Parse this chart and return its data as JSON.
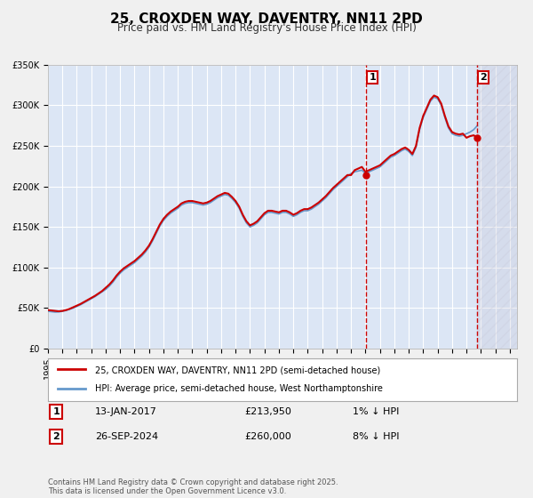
{
  "title": "25, CROXDEN WAY, DAVENTRY, NN11 2PD",
  "subtitle": "Price paid vs. HM Land Registry's House Price Index (HPI)",
  "xlabel": "",
  "ylabel": "",
  "ylim": [
    0,
    350000
  ],
  "yticks": [
    0,
    50000,
    100000,
    150000,
    200000,
    250000,
    300000,
    350000
  ],
  "ytick_labels": [
    "£0",
    "£50K",
    "£100K",
    "£150K",
    "£200K",
    "£250K",
    "£300K",
    "£350K"
  ],
  "xlim_start": 1995.0,
  "xlim_end": 2027.5,
  "bg_color": "#e8eef8",
  "plot_bg_color": "#dce6f5",
  "grid_color": "#ffffff",
  "red_line_color": "#cc0000",
  "blue_line_color": "#6699cc",
  "hatch_color": "#ccccdd",
  "purchase1_year": 2017.04,
  "purchase1_price": 213950,
  "purchase2_year": 2024.73,
  "purchase2_price": 260000,
  "legend1": "25, CROXDEN WAY, DAVENTRY, NN11 2PD (semi-detached house)",
  "legend2": "HPI: Average price, semi-detached house, West Northamptonshire",
  "ann1_label": "1",
  "ann1_date": "13-JAN-2017",
  "ann1_price": "£213,950",
  "ann1_rel": "1% ↓ HPI",
  "ann2_label": "2",
  "ann2_date": "26-SEP-2024",
  "ann2_price": "£260,000",
  "ann2_rel": "8% ↓ HPI",
  "footer": "Contains HM Land Registry data © Crown copyright and database right 2025.\nThis data is licensed under the Open Government Licence v3.0.",
  "hpi_years": [
    1995.0,
    1995.25,
    1995.5,
    1995.75,
    1996.0,
    1996.25,
    1996.5,
    1996.75,
    1997.0,
    1997.25,
    1997.5,
    1997.75,
    1998.0,
    1998.25,
    1998.5,
    1998.75,
    1999.0,
    1999.25,
    1999.5,
    1999.75,
    2000.0,
    2000.25,
    2000.5,
    2000.75,
    2001.0,
    2001.25,
    2001.5,
    2001.75,
    2002.0,
    2002.25,
    2002.5,
    2002.75,
    2003.0,
    2003.25,
    2003.5,
    2003.75,
    2004.0,
    2004.25,
    2004.5,
    2004.75,
    2005.0,
    2005.25,
    2005.5,
    2005.75,
    2006.0,
    2006.25,
    2006.5,
    2006.75,
    2007.0,
    2007.25,
    2007.5,
    2007.75,
    2008.0,
    2008.25,
    2008.5,
    2008.75,
    2009.0,
    2009.25,
    2009.5,
    2009.75,
    2010.0,
    2010.25,
    2010.5,
    2010.75,
    2011.0,
    2011.25,
    2011.5,
    2011.75,
    2012.0,
    2012.25,
    2012.5,
    2012.75,
    2013.0,
    2013.25,
    2013.5,
    2013.75,
    2014.0,
    2014.25,
    2014.5,
    2014.75,
    2015.0,
    2015.25,
    2015.5,
    2015.75,
    2016.0,
    2016.25,
    2016.5,
    2016.75,
    2017.0,
    2017.25,
    2017.5,
    2017.75,
    2018.0,
    2018.25,
    2018.5,
    2018.75,
    2019.0,
    2019.25,
    2019.5,
    2019.75,
    2020.0,
    2020.25,
    2020.5,
    2020.75,
    2021.0,
    2021.25,
    2021.5,
    2021.75,
    2022.0,
    2022.25,
    2022.5,
    2022.75,
    2023.0,
    2023.25,
    2023.5,
    2023.75,
    2024.0,
    2024.25,
    2024.5,
    2024.75
  ],
  "hpi_values": [
    46000,
    45500,
    45000,
    45200,
    46000,
    47000,
    48500,
    50000,
    52000,
    54000,
    56500,
    59000,
    61500,
    64000,
    67000,
    70000,
    73000,
    77000,
    82000,
    88000,
    93000,
    97000,
    100000,
    103000,
    106000,
    110000,
    114000,
    119000,
    125000,
    133000,
    142000,
    151000,
    158000,
    163000,
    167000,
    170000,
    173000,
    177000,
    179000,
    180000,
    180000,
    179000,
    178000,
    177000,
    178000,
    180000,
    183000,
    186000,
    188000,
    190000,
    189000,
    185000,
    180000,
    173000,
    163000,
    155000,
    150000,
    152000,
    155000,
    160000,
    165000,
    168000,
    168000,
    167000,
    166000,
    168000,
    168000,
    166000,
    163000,
    165000,
    168000,
    170000,
    170000,
    172000,
    175000,
    178000,
    182000,
    186000,
    191000,
    196000,
    200000,
    204000,
    208000,
    212000,
    216000,
    218000,
    219000,
    220000,
    216000,
    218000,
    220000,
    222000,
    224000,
    228000,
    232000,
    236000,
    238000,
    241000,
    244000,
    246000,
    243000,
    238000,
    248000,
    270000,
    285000,
    295000,
    305000,
    310000,
    308000,
    300000,
    285000,
    272000,
    265000,
    263000,
    262000,
    263000,
    265000,
    267000,
    270000,
    275000
  ],
  "prop_years": [
    1995.0,
    1995.25,
    1995.5,
    1995.75,
    1996.0,
    1996.25,
    1996.5,
    1996.75,
    1997.0,
    1997.25,
    1997.5,
    1997.75,
    1998.0,
    1998.25,
    1998.5,
    1998.75,
    1999.0,
    1999.25,
    1999.5,
    1999.75,
    2000.0,
    2000.25,
    2000.5,
    2000.75,
    2001.0,
    2001.25,
    2001.5,
    2001.75,
    2002.0,
    2002.25,
    2002.5,
    2002.75,
    2003.0,
    2003.25,
    2003.5,
    2003.75,
    2004.0,
    2004.25,
    2004.5,
    2004.75,
    2005.0,
    2005.25,
    2005.5,
    2005.75,
    2006.0,
    2006.25,
    2006.5,
    2006.75,
    2007.0,
    2007.25,
    2007.5,
    2007.75,
    2008.0,
    2008.25,
    2008.5,
    2008.75,
    2009.0,
    2009.25,
    2009.5,
    2009.75,
    2010.0,
    2010.25,
    2010.5,
    2010.75,
    2011.0,
    2011.25,
    2011.5,
    2011.75,
    2012.0,
    2012.25,
    2012.5,
    2012.75,
    2013.0,
    2013.25,
    2013.5,
    2013.75,
    2014.0,
    2014.25,
    2014.5,
    2014.75,
    2015.0,
    2015.25,
    2015.5,
    2015.75,
    2016.0,
    2016.25,
    2016.5,
    2016.75,
    2017.0,
    2017.25,
    2017.5,
    2017.75,
    2018.0,
    2018.25,
    2018.5,
    2018.75,
    2019.0,
    2019.25,
    2019.5,
    2019.75,
    2020.0,
    2020.25,
    2020.5,
    2020.75,
    2021.0,
    2021.25,
    2021.5,
    2021.75,
    2022.0,
    2022.25,
    2022.5,
    2022.75,
    2023.0,
    2023.25,
    2023.5,
    2023.75,
    2024.0,
    2024.25,
    2024.5,
    2024.75
  ],
  "prop_values": [
    47500,
    47000,
    46500,
    46000,
    46500,
    47500,
    49000,
    51000,
    53000,
    55000,
    57500,
    60000,
    62500,
    65000,
    68000,
    71000,
    75000,
    79000,
    84000,
    90000,
    95000,
    99000,
    102000,
    105000,
    108000,
    112000,
    116000,
    121000,
    127000,
    135000,
    144000,
    153000,
    160000,
    165000,
    169000,
    172000,
    175000,
    179000,
    181000,
    182000,
    182000,
    181000,
    180000,
    179000,
    180000,
    182000,
    185000,
    188000,
    190000,
    192000,
    191000,
    187000,
    182000,
    175000,
    165000,
    157000,
    152000,
    154000,
    157000,
    162000,
    167000,
    170000,
    170000,
    169000,
    168000,
    170000,
    170000,
    168000,
    165000,
    167000,
    170000,
    172000,
    172000,
    174000,
    177000,
    180000,
    184000,
    188000,
    193000,
    198000,
    202000,
    206000,
    210000,
    214000,
    213950,
    220000,
    222000,
    224000,
    218000,
    220000,
    222000,
    224000,
    226000,
    230000,
    234000,
    238000,
    240000,
    243000,
    246000,
    248000,
    245000,
    240000,
    250000,
    272000,
    287000,
    297000,
    307000,
    312000,
    310000,
    302000,
    287000,
    274000,
    267000,
    265000,
    264000,
    265000,
    260000,
    262000,
    263000,
    260000
  ]
}
